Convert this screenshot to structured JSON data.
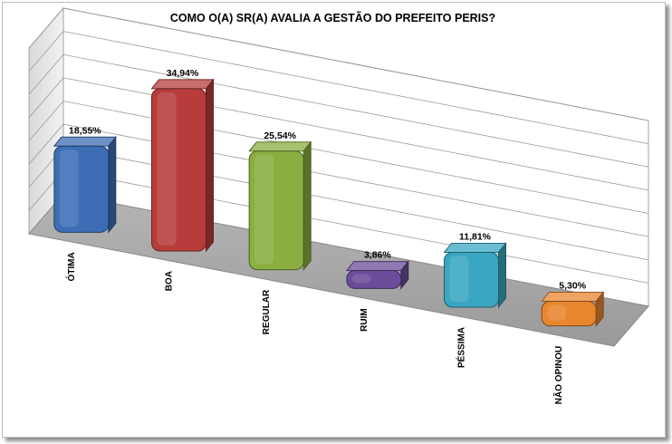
{
  "chart_data": {
    "type": "bar",
    "title": "COMO O(A) SR(A) AVALIA A GESTÃO DO PREFEITO PERIS?",
    "categories": [
      "ÓTIMA",
      "BOA",
      "REGULAR",
      "RUIM",
      "PÉSSIMA",
      "NÃO OPINOU"
    ],
    "values": [
      18.55,
      34.94,
      25.54,
      3.86,
      11.81,
      5.3
    ],
    "data_labels": [
      "18,55%",
      "34,94%",
      "25,54%",
      "3,86%",
      "11,81%",
      "5,30%"
    ],
    "ylim": [
      0,
      40
    ],
    "grid": true,
    "legend": "none",
    "three_d": true,
    "colors": [
      "#3d6eb5",
      "#b83c3c",
      "#8aae3f",
      "#6b4c9a",
      "#3aa7c2",
      "#e8862e"
    ]
  }
}
